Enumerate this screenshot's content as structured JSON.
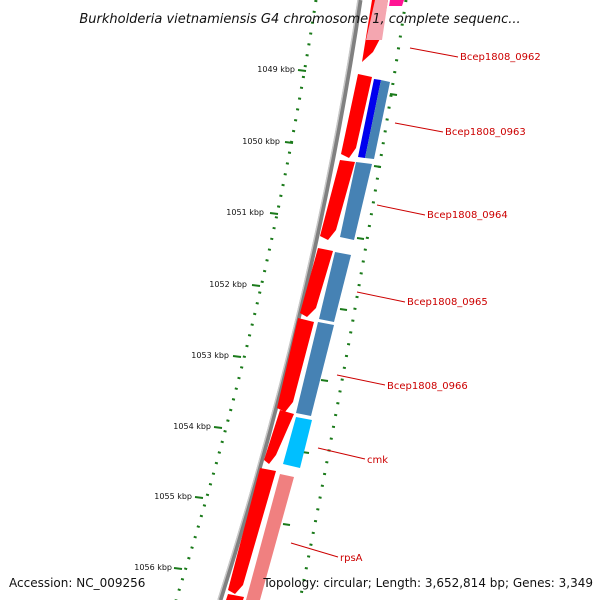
{
  "title": "Burkholderia vietnamiensis G4 chromosome 1, complete sequenc...",
  "ticks": [
    "1049 kbp",
    "1050 kbp",
    "1051 kbp",
    "1052 kbp",
    "1053 kbp",
    "1054 kbp",
    "1055 kbp",
    "1056 kbp"
  ],
  "genes": [
    {
      "name": "Bcep1808_0962"
    },
    {
      "name": "Bcep1808_0963"
    },
    {
      "name": "Bcep1808_0964"
    },
    {
      "name": "Bcep1808_0965"
    },
    {
      "name": "Bcep1808_0966"
    },
    {
      "name": "cmk"
    },
    {
      "name": "rpsA"
    }
  ],
  "footer": {
    "accession": "Accession: NC_009256",
    "topology": "Topology: circular; Length: 3,652,814 bp; Genes: 3,349"
  },
  "colors": {
    "cds_forward": "#ff0000",
    "cds_light": "#f08080",
    "gene_blue": "#4682b4",
    "gene_dark_blue": "#0000ee",
    "gene_cyan": "#00bfff",
    "gene_pink": "#ff1493",
    "tick": "#1a7a1a",
    "backbone": "#808080",
    "label": "#cc0000"
  }
}
